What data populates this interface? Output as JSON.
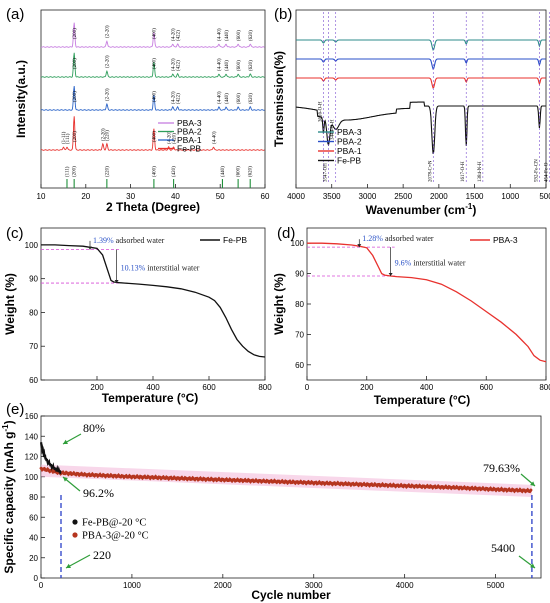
{
  "chart_data": [
    {
      "panel": "(a)",
      "type": "line",
      "xlabel": "2 Theta (Degree)",
      "ylabel": "Intensity(a.u.)",
      "xlim": [
        10,
        60
      ],
      "xticks": [
        "10",
        "20",
        "30",
        "40",
        "50",
        "60"
      ],
      "series": [
        {
          "name": "PBA-3",
          "color": "#c77ee0",
          "peaks": [
            {
              "x": 17.4,
              "label": "(200)"
            },
            {
              "x": 24.7,
              "label": "(2-20)"
            },
            {
              "x": 35.2,
              "label": "(400)"
            },
            {
              "x": 39.4,
              "label": "(4-20)"
            },
            {
              "x": 40.5,
              "label": "(422)"
            },
            {
              "x": 49.7,
              "label": "(4-40)"
            },
            {
              "x": 51.3,
              "label": "(440)"
            },
            {
              "x": 54.0,
              "label": "(600)"
            },
            {
              "x": 56.7,
              "label": "(620)"
            }
          ]
        },
        {
          "name": "PBA-2",
          "color": "#2e9e5b",
          "peaks": [
            {
              "x": 17.4,
              "label": "(200)"
            },
            {
              "x": 24.7,
              "label": "(2-20)"
            },
            {
              "x": 35.2,
              "label": "(400)"
            },
            {
              "x": 39.4,
              "label": "(4-20)"
            },
            {
              "x": 40.5,
              "label": "(422)"
            },
            {
              "x": 49.7,
              "label": "(4-40)"
            },
            {
              "x": 51.3,
              "label": "(440)"
            },
            {
              "x": 54.0,
              "label": "(600)"
            },
            {
              "x": 56.7,
              "label": "(620)"
            }
          ]
        },
        {
          "name": "PBA-1",
          "color": "#2a63c8",
          "peaks": [
            {
              "x": 17.4,
              "label": "(200)"
            },
            {
              "x": 24.7,
              "label": "(2-20)"
            },
            {
              "x": 35.2,
              "label": "(400)"
            },
            {
              "x": 39.4,
              "label": "(4-20)"
            },
            {
              "x": 40.5,
              "label": "(422)"
            },
            {
              "x": 49.7,
              "label": "(4-40)"
            },
            {
              "x": 51.3,
              "label": "(440)"
            },
            {
              "x": 54.0,
              "label": "(600)"
            },
            {
              "x": 56.7,
              "label": "(620)"
            }
          ]
        },
        {
          "name": "Fe-PB",
          "color": "#e8322e",
          "peaks": [
            {
              "x": 15.0,
              "label": "(1-11)"
            },
            {
              "x": 15.8,
              "label": "(111)"
            },
            {
              "x": 17.4,
              "label": "(200)"
            },
            {
              "x": 23.8,
              "label": "(2-20)"
            },
            {
              "x": 24.7,
              "label": "(220)"
            },
            {
              "x": 35.2,
              "label": "(400)"
            },
            {
              "x": 38.5,
              "label": "(4-20)"
            },
            {
              "x": 39.6,
              "label": "(420)"
            },
            {
              "x": 48.5,
              "label": "(4-40)"
            }
          ]
        }
      ],
      "reference_labels": [
        "(111)",
        "(200)",
        "(220)",
        "(400)",
        "(420)",
        "(440)",
        "(600)",
        "(620)"
      ],
      "reference_positions": [
        15.8,
        17.4,
        24.7,
        35.2,
        39.6,
        50.5,
        54.0,
        56.7
      ]
    },
    {
      "panel": "(b)",
      "type": "line",
      "xlabel": "Wavenumber (cm",
      "xlabel_sup": "-1",
      "xlabel_end": ")",
      "ylabel": "Transmission(%)",
      "xlim": [
        4000,
        500
      ],
      "xticks": [
        "4000",
        "3500",
        "3000",
        "2500",
        "2000",
        "1500",
        "1000",
        "500"
      ],
      "legend": [
        "PBA-3",
        "PBA-2",
        "PBA-1",
        "Fe-PB"
      ],
      "series_colors": [
        "#2e8b8b",
        "#2a4fc8",
        "#e8322e",
        "#111111"
      ],
      "annotations": [
        {
          "x": 3616,
          "label": "3616-O-H"
        },
        {
          "x": 3547,
          "label": "3547-OH"
        },
        {
          "x": 3444,
          "label": "3444-O-H"
        },
        {
          "x": 2078,
          "label": "2078-C≡N"
        },
        {
          "x": 1617,
          "label": "1617-O-H"
        },
        {
          "x": 1384,
          "label": "1384-N-H"
        },
        {
          "x": 592,
          "label": "592-Fe-CN"
        },
        {
          "x": 454,
          "label": "454-Fe-O"
        }
      ]
    },
    {
      "panel": "(c)",
      "type": "line",
      "xlabel": "Temperature (°C)",
      "ylabel": "Weight (%)",
      "xlim": [
        0,
        800
      ],
      "ylim": [
        60,
        105
      ],
      "xticks": [
        "200",
        "400",
        "600",
        "800"
      ],
      "yticks": [
        "60",
        "70",
        "80",
        "90",
        "100"
      ],
      "legend": "Fe-PB",
      "series_color": "#111111",
      "x": [
        0,
        50,
        100,
        150,
        175,
        200,
        220,
        240,
        250,
        260,
        270,
        280,
        300,
        350,
        400,
        450,
        500,
        550,
        600,
        620,
        640,
        660,
        680,
        700,
        720,
        740,
        760,
        780,
        800
      ],
      "y": [
        100,
        100,
        99.8,
        99.6,
        99.3,
        99,
        97,
        92,
        89.5,
        89,
        88.9,
        88.8,
        88.7,
        88.4,
        88,
        87.6,
        87,
        86,
        84.5,
        83.5,
        81.5,
        78.5,
        75,
        72,
        70,
        68.5,
        67.5,
        67,
        66.8
      ],
      "annotations": [
        {
          "pct": "1.39%",
          "text": "adsorbed water"
        },
        {
          "pct": "10.13%",
          "text": "interstitial water"
        }
      ]
    },
    {
      "panel": "(d)",
      "type": "line",
      "xlabel": "Temperature (°C)",
      "ylabel": "Weight (%)",
      "xlim": [
        0,
        800
      ],
      "ylim": [
        55,
        105
      ],
      "xticks": [
        "0",
        "200",
        "400",
        "600",
        "800"
      ],
      "yticks": [
        "60",
        "70",
        "80",
        "90",
        "100"
      ],
      "legend": "PBA-3",
      "series_color": "#e8322e",
      "x": [
        0,
        50,
        100,
        150,
        175,
        200,
        220,
        240,
        250,
        260,
        280,
        300,
        350,
        400,
        450,
        500,
        550,
        600,
        650,
        700,
        720,
        740,
        760,
        780,
        800
      ],
      "y": [
        100,
        100,
        99.8,
        99.4,
        99,
        98.5,
        96,
        92,
        90,
        89.5,
        89.2,
        89,
        88.7,
        88,
        86.5,
        84,
        81,
        77.5,
        74,
        70,
        68,
        66,
        63,
        61.5,
        61
      ],
      "annotations": [
        {
          "pct": "1.28%",
          "text": "adsorbed water"
        },
        {
          "pct": "9.6%",
          "text": "interstitial water"
        }
      ]
    },
    {
      "panel": "(e)",
      "type": "scatter",
      "xlabel": "Cycle number",
      "ylabel": "Specific capacity (mAh g",
      "ylabel_sup": "-1",
      "ylabel_end": ")",
      "xlim": [
        0,
        5500
      ],
      "ylim": [
        0,
        160
      ],
      "xticks": [
        "0",
        "1000",
        "2000",
        "3000",
        "4000",
        "5000"
      ],
      "yticks": [
        "0",
        "20",
        "40",
        "60",
        "80",
        "100",
        "120",
        "140",
        "160"
      ],
      "series": [
        {
          "name": "Fe-PB@-20 °C",
          "color": "#111111",
          "x": [
            1,
            20,
            50,
            100,
            150,
            200,
            220
          ],
          "y": [
            133,
            126,
            118,
            112,
            108,
            105.5,
            104.5
          ]
        },
        {
          "name": "PBA-3@-20 °C",
          "color": "#b5351f",
          "x": [
            1,
            200,
            500,
            1000,
            1500,
            2000,
            2500,
            3000,
            3500,
            4000,
            4500,
            5000,
            5400
          ],
          "y": [
            108,
            104,
            102,
            100,
            98.5,
            97,
            95.5,
            94,
            92.5,
            91,
            89.5,
            87.5,
            86
          ]
        }
      ],
      "annotations": [
        {
          "text": "80%"
        },
        {
          "text": "96.2%"
        },
        {
          "text": "79.63%"
        },
        {
          "text": "220"
        },
        {
          "text": "5400"
        }
      ],
      "dashed_lines_at": [
        220,
        5400
      ]
    }
  ]
}
